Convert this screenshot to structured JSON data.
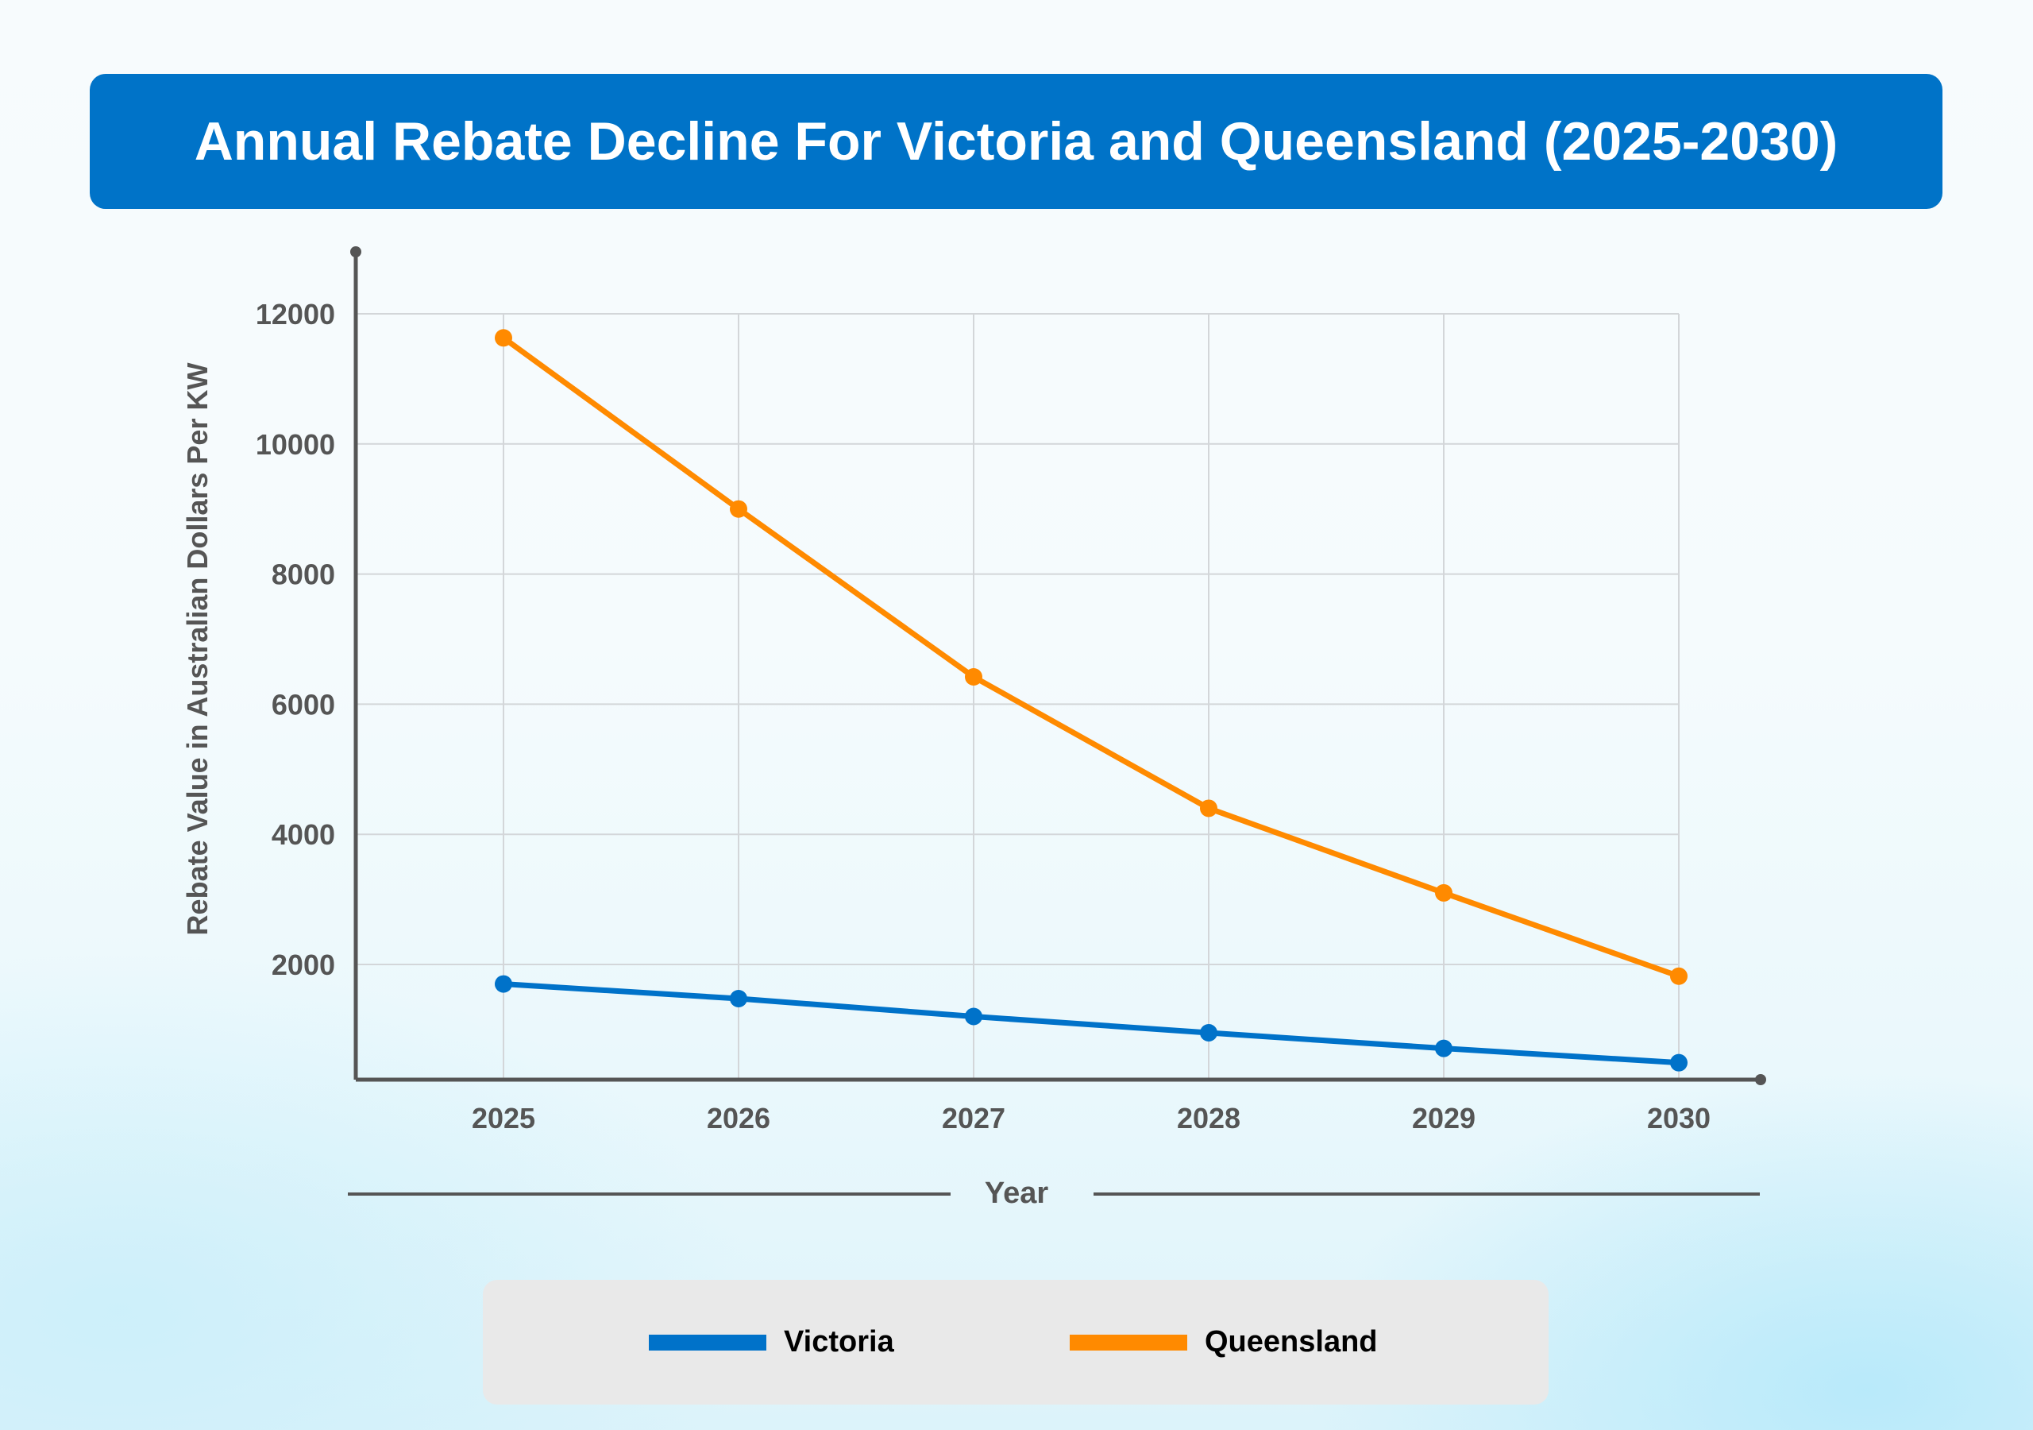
{
  "chart_data": {
    "type": "line",
    "title": "Annual Rebate Decline For Victoria and Queensland (2025-2030)",
    "xlabel": "Year",
    "ylabel": "Rebate Value in Australian Dollars Per KW",
    "x": [
      "2025",
      "2026",
      "2027",
      "2028",
      "2029",
      "2030"
    ],
    "y_ticks": [
      "2000",
      "4000",
      "6000",
      "8000",
      "10000",
      "12000"
    ],
    "ylim": [
      230,
      12900
    ],
    "grid": true,
    "legend_position": "bottom",
    "series": [
      {
        "name": "Victoria",
        "color": "#0072c9",
        "values": [
          1700,
          1475,
          1200,
          950,
          710,
          490
        ]
      },
      {
        "name": "Queensland",
        "color": "#ff8a00",
        "values": [
          11630,
          9000,
          6420,
          4400,
          3100,
          1820
        ]
      }
    ]
  },
  "colors": {
    "banner": "#0073c8",
    "axis": "#555555",
    "grid": "#d3d6d9",
    "legend_bg": "#e9e9e9"
  }
}
